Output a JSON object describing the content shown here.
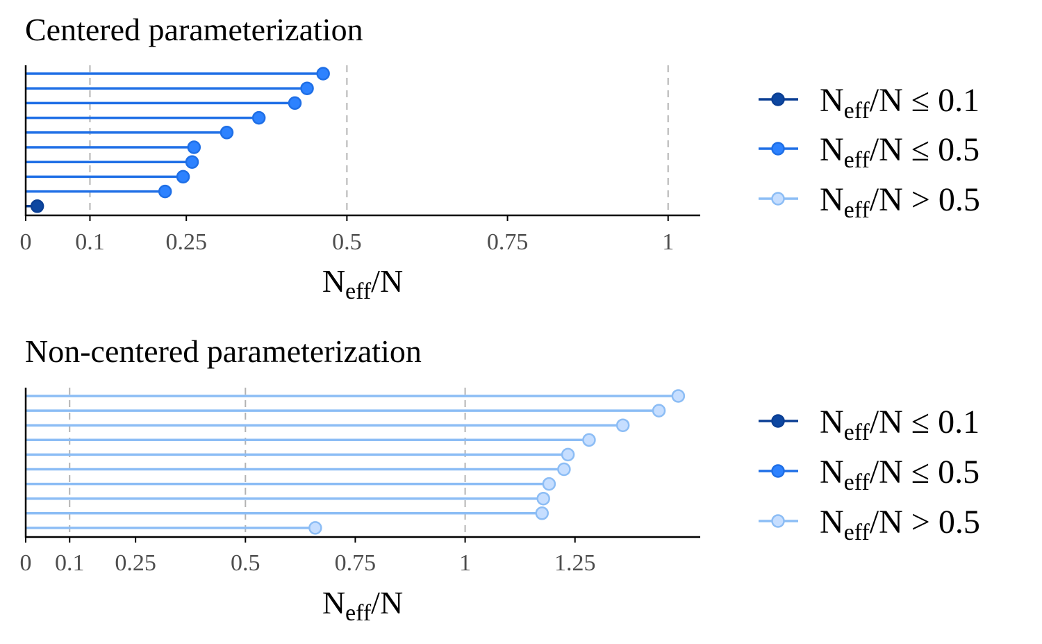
{
  "colors": {
    "low": "#0b3f94",
    "mid": "#1f6fe6",
    "high": "#8cbdf5",
    "low_fill": "#0d47a1",
    "mid_fill": "#2d82ff",
    "high_fill": "#c6deff",
    "grid": "#b3b3b3",
    "axis": "#000000"
  },
  "legend": {
    "items": [
      {
        "key": "low",
        "base": "N",
        "sub": "eff",
        "rest": "/N ≤ 0.1"
      },
      {
        "key": "mid",
        "base": "N",
        "sub": "eff",
        "rest": "/N ≤ 0.5"
      },
      {
        "key": "high",
        "base": "N",
        "sub": "eff",
        "rest": "/N > 0.5"
      }
    ]
  },
  "chart_data": [
    {
      "type": "lollipop",
      "title": "Centered parameterization",
      "xlabel": {
        "base": "N",
        "sub": "eff",
        "rest": "/N"
      },
      "xlim": [
        0,
        1.05
      ],
      "x_ticks": [
        0,
        0.1,
        0.25,
        0.5,
        0.75,
        1
      ],
      "x_tick_labels": [
        "0",
        "0.1",
        "0.25",
        "0.5",
        "0.75",
        "1"
      ],
      "gridlines": [
        0.1,
        0.5,
        1
      ],
      "values": [
        0.463,
        0.438,
        0.419,
        0.363,
        0.313,
        0.262,
        0.259,
        0.245,
        0.217,
        0.018
      ]
    },
    {
      "type": "lollipop",
      "title": "Non-centered parameterization",
      "xlabel": {
        "base": "N",
        "sub": "eff",
        "rest": "/N"
      },
      "xlim": [
        0,
        1.535
      ],
      "x_ticks": [
        0,
        0.1,
        0.25,
        0.5,
        0.75,
        1,
        1.25
      ],
      "x_tick_labels": [
        "0",
        "0.1",
        "0.25",
        "0.5",
        "0.75",
        "1",
        "1.25"
      ],
      "gridlines": [
        0.1,
        0.5,
        1
      ],
      "values": [
        1.485,
        1.441,
        1.359,
        1.282,
        1.234,
        1.225,
        1.191,
        1.178,
        1.175,
        0.659
      ]
    }
  ]
}
